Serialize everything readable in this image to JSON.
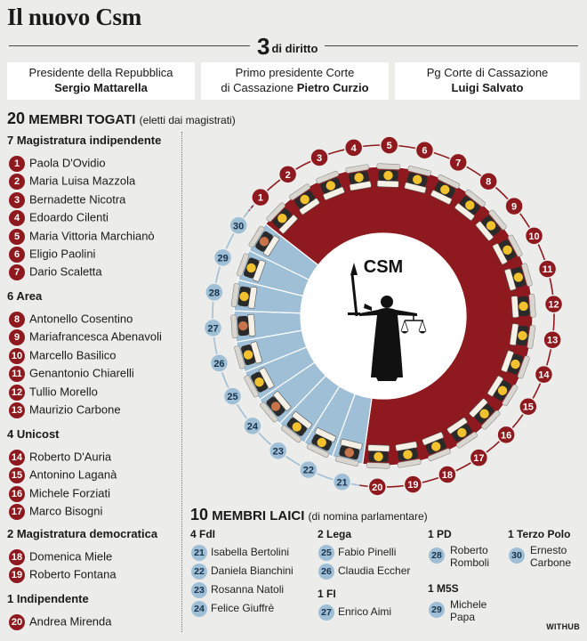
{
  "title": "Il nuovo Csm",
  "diritto": {
    "count": "3",
    "label": "di diritto"
  },
  "top_members": [
    {
      "role": "Presidente della Repubblica",
      "name": "Sergio Mattarella"
    },
    {
      "role": "Primo presidente Corte",
      "role2": "di Cassazione",
      "name": "Pietro Curzio"
    },
    {
      "role": "Pg Corte di Cassazione",
      "name": "Luigi Salvato"
    }
  ],
  "togati": {
    "count": "20",
    "label": "MEMBRI TOGATI",
    "note": "(eletti dai magistrati)"
  },
  "groups": [
    {
      "label": "7 Magistratura indipendente",
      "members": [
        {
          "n": "1",
          "name": "Paola D'Ovidio"
        },
        {
          "n": "2",
          "name": "Maria Luisa Mazzola"
        },
        {
          "n": "3",
          "name": "Bernadette Nicotra"
        },
        {
          "n": "4",
          "name": "Edoardo Cilenti"
        },
        {
          "n": "5",
          "name": "Maria Vittoria Marchianò"
        },
        {
          "n": "6",
          "name": "Eligio Paolini"
        },
        {
          "n": "7",
          "name": "Dario Scaletta"
        }
      ]
    },
    {
      "label": "6 Area",
      "members": [
        {
          "n": "8",
          "name": "Antonello Cosentino"
        },
        {
          "n": "9",
          "name": "Mariafrancesca Abenavoli"
        },
        {
          "n": "10",
          "name": "Marcello Basilico"
        },
        {
          "n": "11",
          "name": "Genantonio Chiarelli"
        },
        {
          "n": "12",
          "name": "Tullio Morello"
        },
        {
          "n": "13",
          "name": "Maurizio Carbone"
        }
      ]
    },
    {
      "label": "4 Unicost",
      "members": [
        {
          "n": "14",
          "name": "Roberto D'Auria"
        },
        {
          "n": "15",
          "name": "Antonino Laganà"
        },
        {
          "n": "16",
          "name": "Michele Forziati"
        },
        {
          "n": "17",
          "name": "Marco Bisogni"
        }
      ]
    },
    {
      "label": "2 Magistratura democratica",
      "members": [
        {
          "n": "18",
          "name": "Domenica Miele"
        },
        {
          "n": "19",
          "name": "Roberto Fontana"
        }
      ]
    },
    {
      "label": "1 Indipendente",
      "members": [
        {
          "n": "20",
          "name": "Andrea Mirenda"
        }
      ]
    }
  ],
  "diagram": {
    "center_label": "CSM",
    "seats_red": 20,
    "seats_blue": 10
  },
  "laici": {
    "count": "10",
    "label": "MEMBRI LAICI",
    "note": "(di nomina parlamentare)"
  },
  "laici_groups": [
    {
      "label": "4 FdI",
      "members": [
        {
          "n": "21",
          "name": "Isabella Bertolini"
        },
        {
          "n": "22",
          "name": "Daniela Bianchini"
        },
        {
          "n": "23",
          "name": "Rosanna Natoli"
        },
        {
          "n": "24",
          "name": "Felice Giuffrè"
        }
      ]
    },
    {
      "label": "2 Lega",
      "members": [
        {
          "n": "25",
          "name": "Fabio Pinelli"
        },
        {
          "n": "26",
          "name": "Claudia Eccher"
        }
      ]
    },
    {
      "label": "1 FI",
      "members": [
        {
          "n": "27",
          "name": "Enrico Aimi"
        }
      ]
    },
    {
      "label": "1 PD",
      "members": [
        {
          "n": "28",
          "name": "Roberto",
          "name2": "Romboli"
        }
      ]
    },
    {
      "label": "1 M5S",
      "members": [
        {
          "n": "29",
          "name": "Michele",
          "name2": "Papa"
        }
      ]
    },
    {
      "label": "1 Terzo Polo",
      "members": [
        {
          "n": "30",
          "name": "Ernesto",
          "name2": "Carbone"
        }
      ]
    }
  ],
  "credit": "WITHUB",
  "colors": {
    "red": "#8e1a1f",
    "blue": "#9fbfd6",
    "yellow": "#f2c12e",
    "orange": "#c8744a"
  }
}
